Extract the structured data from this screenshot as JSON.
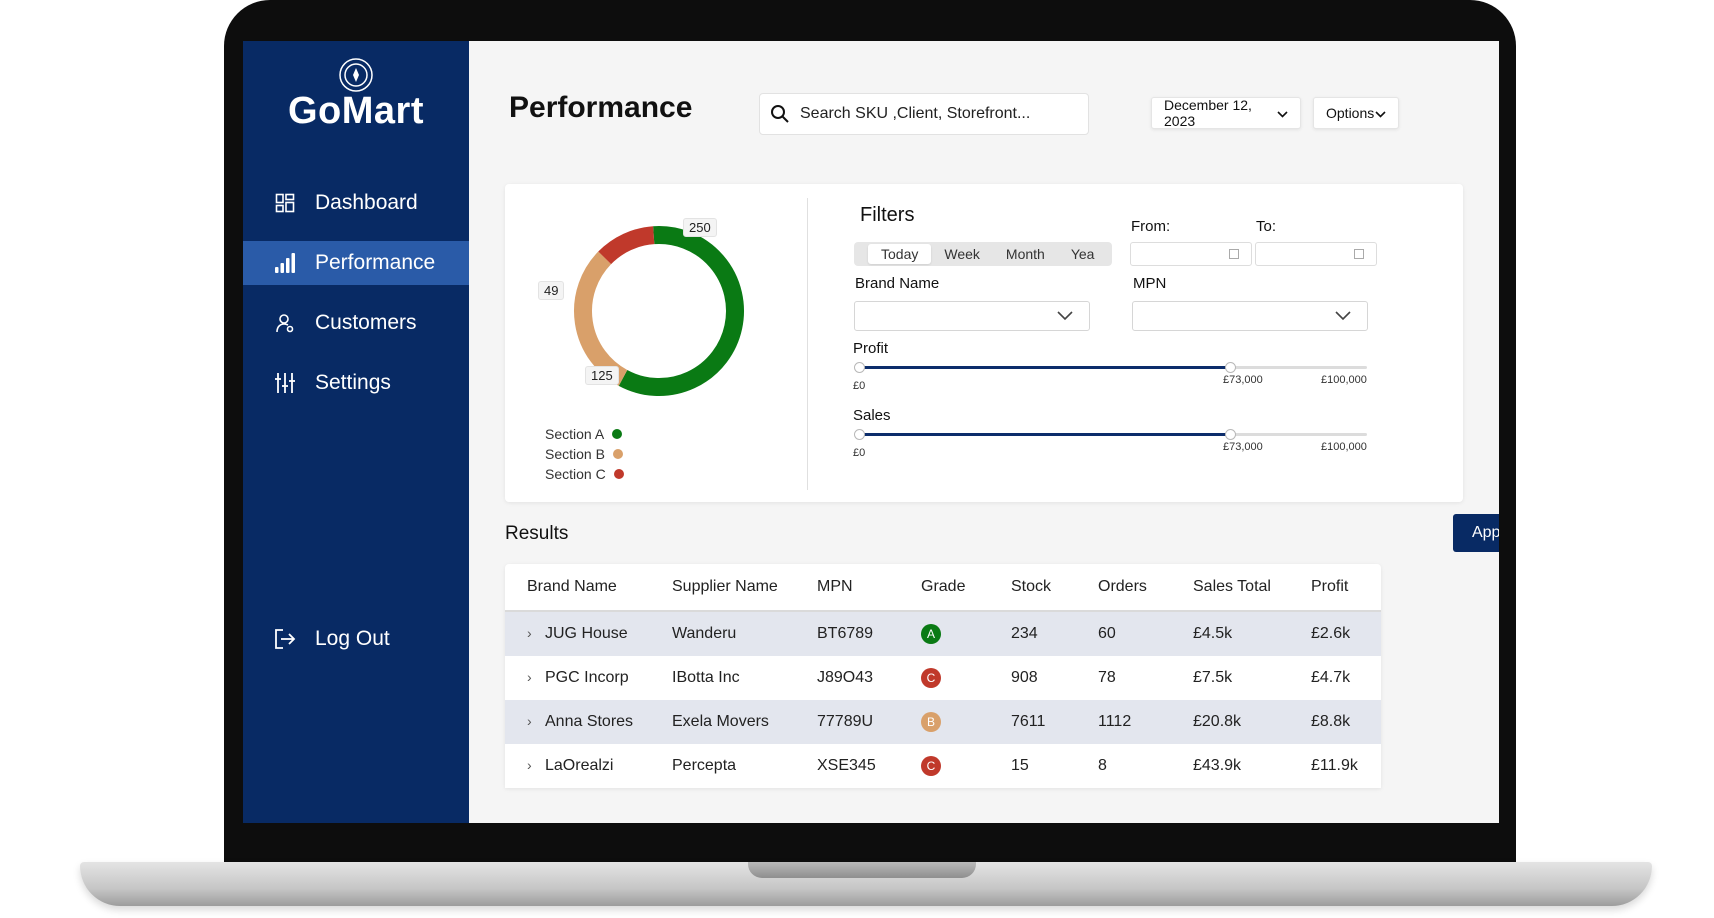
{
  "app": {
    "brand": "GoMart"
  },
  "sidebar": {
    "items": [
      {
        "label": "Dashboard",
        "icon": "dashboard-icon",
        "active": false
      },
      {
        "label": "Performance",
        "icon": "bar-chart-icon",
        "active": true
      },
      {
        "label": "Customers",
        "icon": "user-icon",
        "active": false
      },
      {
        "label": "Settings",
        "icon": "sliders-icon",
        "active": false
      }
    ],
    "logout_label": "Log Out"
  },
  "header": {
    "title": "Performance",
    "search_placeholder": "Search SKU ,Client, Storefront...",
    "date_value": "December 12, 2023",
    "options_label": "Options"
  },
  "chart_data": {
    "type": "pie",
    "style": "donut",
    "categories": [
      "Section A",
      "Section B",
      "Section C"
    ],
    "values": [
      250,
      125,
      49
    ],
    "colors": [
      "#0a7a14",
      "#d9a06a",
      "#c0392b"
    ],
    "data_labels": [
      "250",
      "125",
      "49"
    ],
    "legend_position": "bottom-left"
  },
  "filters": {
    "title": "Filters",
    "periods": [
      "Today",
      "Week",
      "Month",
      "Yea"
    ],
    "selected_period": "Today",
    "from_label": "From:",
    "to_label": "To:",
    "brand_label": "Brand Name",
    "mpn_label": "MPN",
    "profit": {
      "label": "Profit",
      "min_label": "£0",
      "value_label": "£73,000",
      "max_label": "£100,000",
      "value_fraction": 0.73
    },
    "sales": {
      "label": "Sales",
      "min_label": "£0",
      "value_label": "£73,000",
      "max_label": "£100,000",
      "value_fraction": 0.73
    }
  },
  "results": {
    "title": "Results",
    "apply_label": "Apply Filters",
    "columns": [
      "Brand Name",
      "Supplier Name",
      "MPN",
      "Grade",
      "Stock",
      "Orders",
      "Sales Total",
      "Profit"
    ],
    "rows": [
      {
        "brand": "JUG House",
        "supplier": "Wanderu",
        "mpn": "BT6789",
        "grade": "A",
        "grade_color": "#0a7a14",
        "stock": "234",
        "orders": "60",
        "sales_total": "£4.5k",
        "profit": "£2.6k"
      },
      {
        "brand": "PGC Incorp",
        "supplier": "IBotta Inc",
        "mpn": "J89O43",
        "grade": "C",
        "grade_color": "#c0392b",
        "stock": "908",
        "orders": "78",
        "sales_total": "£7.5k",
        "profit": "£4.7k"
      },
      {
        "brand": "Anna Stores",
        "supplier": "Exela Movers",
        "mpn": "77789U",
        "grade": "B",
        "grade_color": "#d9a06a",
        "stock": "7611",
        "orders": "1112",
        "sales_total": "£20.8k",
        "profit": "£8.8k"
      },
      {
        "brand": "LaOrealzi",
        "supplier": "Percepta",
        "mpn": "XSE345",
        "grade": "C",
        "grade_color": "#c0392b",
        "stock": "15",
        "orders": "8",
        "sales_total": "£43.9k",
        "profit": "£11.9k"
      }
    ]
  }
}
